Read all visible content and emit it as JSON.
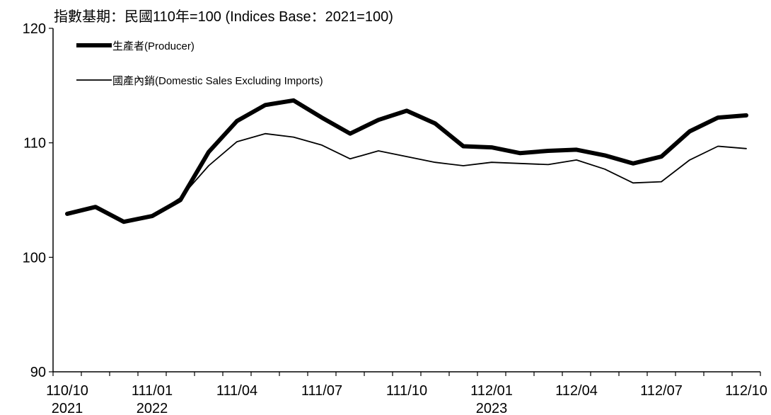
{
  "chart_data": {
    "type": "line",
    "base_note": "指數基期：民國110年=100 (Indices Base：2021=100)",
    "ylim": [
      90,
      120
    ],
    "yticks": [
      90,
      100,
      110,
      120
    ],
    "grid": false,
    "legend_position": "top-left",
    "categories": [
      "110/10",
      "110/11",
      "110/12",
      "111/01",
      "111/02",
      "111/03",
      "111/04",
      "111/05",
      "111/06",
      "111/07",
      "111/08",
      "111/09",
      "111/10",
      "111/11",
      "111/12",
      "112/01",
      "112/02",
      "112/03",
      "112/04",
      "112/05",
      "112/06",
      "112/07",
      "112/08",
      "112/09",
      "112/10"
    ],
    "x_tick_labels": [
      {
        "index": 0,
        "line1": "110/10",
        "line2": "2021"
      },
      {
        "index": 3,
        "line1": "111/01",
        "line2": "2022"
      },
      {
        "index": 6,
        "line1": "111/04",
        "line2": ""
      },
      {
        "index": 9,
        "line1": "111/07",
        "line2": ""
      },
      {
        "index": 12,
        "line1": "111/10",
        "line2": ""
      },
      {
        "index": 15,
        "line1": "112/01",
        "line2": "2023"
      },
      {
        "index": 18,
        "line1": "112/04",
        "line2": ""
      },
      {
        "index": 21,
        "line1": "112/07",
        "line2": ""
      },
      {
        "index": 24,
        "line1": "112/10",
        "line2": ""
      }
    ],
    "series": [
      {
        "name": "生產者(Producer)",
        "color": "#000000",
        "style": "thick",
        "values": [
          103.8,
          104.4,
          103.1,
          103.6,
          105.0,
          109.2,
          111.9,
          113.3,
          113.7,
          112.2,
          110.8,
          112.0,
          112.8,
          111.7,
          109.7,
          109.6,
          109.1,
          109.3,
          109.4,
          108.9,
          108.2,
          108.8,
          111.0,
          112.2,
          112.4
        ]
      },
      {
        "name": "國產內銷(Domestic Sales Excluding Imports)",
        "color": "#000000",
        "style": "thin",
        "values": [
          103.8,
          104.4,
          103.1,
          103.6,
          105.2,
          108.0,
          110.1,
          110.8,
          110.5,
          109.8,
          108.6,
          109.3,
          108.8,
          108.3,
          108.0,
          108.3,
          108.2,
          108.1,
          108.5,
          107.7,
          106.5,
          106.6,
          108.5,
          109.7,
          109.5
        ]
      }
    ]
  }
}
